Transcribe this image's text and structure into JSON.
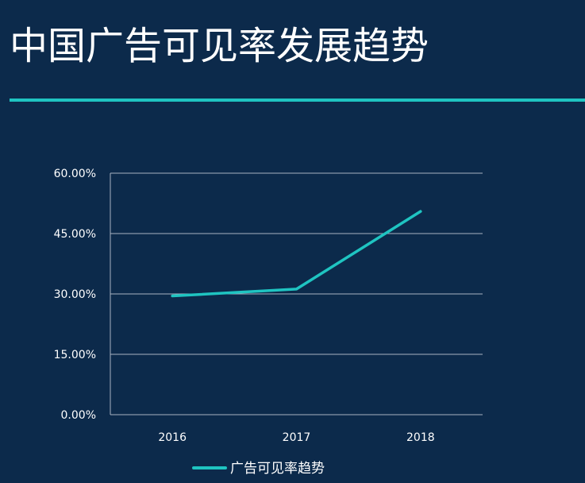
{
  "slide": {
    "title": "中国广告可见率发展趋势"
  },
  "colors": {
    "background": "#0c2a4b",
    "accent": "#1fc4c1",
    "gridline": "#a9b3c0",
    "text": "#ffffff"
  },
  "chart_data": {
    "type": "line",
    "categories": [
      "2016",
      "2017",
      "2018"
    ],
    "series": [
      {
        "name": "广告可见率趋势",
        "values": [
          29.5,
          31.2,
          50.5
        ],
        "color": "#1fc4c1"
      }
    ],
    "y_ticks": [
      "0.00%",
      "15.00%",
      "30.00%",
      "45.00%",
      "60.00%"
    ],
    "ylim": [
      0,
      60
    ],
    "grid": true,
    "legend_position": "bottom"
  }
}
